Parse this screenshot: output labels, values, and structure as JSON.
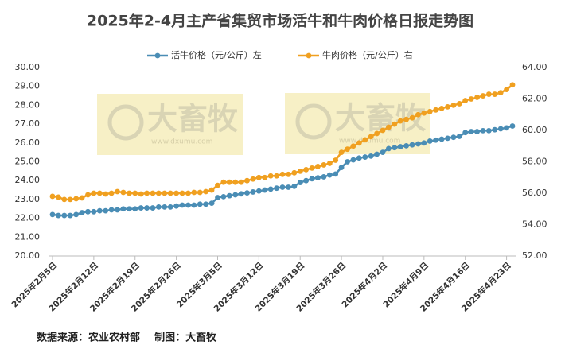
{
  "chart_data": {
    "type": "line",
    "title": "2025年2-4月主产省集贸市场活牛和牛肉价格日报走势图",
    "source": "数据来源：农业农村部    制图：大畜牧",
    "watermark": {
      "brand": "大畜牧",
      "url": "www.dxumu.com"
    },
    "categories": [
      "2025年2月5日",
      null,
      null,
      null,
      null,
      null,
      null,
      "2025年2月12日",
      null,
      null,
      null,
      null,
      null,
      null,
      "2025年2月19日",
      null,
      null,
      null,
      null,
      null,
      null,
      "2025年2月26日",
      null,
      null,
      null,
      null,
      null,
      null,
      "2025年3月5日",
      null,
      null,
      null,
      null,
      null,
      null,
      "2025年3月12日",
      null,
      null,
      null,
      null,
      null,
      null,
      "2025年3月19日",
      null,
      null,
      null,
      null,
      null,
      null,
      "2025年3月26日",
      null,
      null,
      null,
      null,
      null,
      null,
      "2025年4月2日",
      null,
      null,
      null,
      null,
      null,
      null,
      "2025年4月9日",
      null,
      null,
      null,
      null,
      null,
      null,
      "2025年4月16日",
      null,
      null,
      null,
      null,
      null,
      null,
      "2025年4月23日",
      null
    ],
    "series": [
      {
        "name": "活牛价格（元/公斤）左",
        "color": "#4a8db5",
        "axis": "y",
        "values": [
          22.2,
          22.15,
          22.15,
          22.15,
          22.2,
          22.3,
          22.35,
          22.35,
          22.4,
          22.4,
          22.45,
          22.45,
          22.5,
          22.5,
          22.5,
          22.55,
          22.55,
          22.55,
          22.6,
          22.6,
          22.6,
          22.65,
          22.7,
          22.7,
          22.7,
          22.75,
          22.75,
          22.8,
          23.1,
          23.15,
          23.2,
          23.25,
          23.3,
          23.35,
          23.4,
          23.45,
          23.5,
          23.55,
          23.6,
          23.65,
          23.65,
          23.7,
          23.9,
          24.0,
          24.1,
          24.15,
          24.2,
          24.3,
          24.35,
          24.7,
          25.0,
          25.1,
          25.2,
          25.25,
          25.3,
          25.4,
          25.5,
          25.7,
          25.75,
          25.8,
          25.85,
          25.9,
          25.95,
          26.0,
          26.1,
          26.15,
          26.2,
          26.25,
          26.3,
          26.35,
          26.55,
          26.6,
          26.6,
          26.65,
          26.65,
          26.7,
          26.75,
          26.8,
          26.9
        ]
      },
      {
        "name": "牛肉价格（元/公斤）右",
        "color": "#f0a020",
        "axis": "y2",
        "values": [
          55.8,
          55.75,
          55.6,
          55.6,
          55.65,
          55.7,
          55.9,
          56.0,
          56.0,
          55.95,
          56.0,
          56.1,
          56.05,
          56.0,
          56.0,
          55.95,
          56.0,
          56.0,
          56.0,
          56.0,
          56.0,
          56.0,
          56.0,
          56.0,
          56.05,
          56.05,
          56.1,
          56.2,
          56.5,
          56.7,
          56.7,
          56.7,
          56.7,
          56.8,
          56.9,
          57.0,
          57.0,
          57.1,
          57.1,
          57.2,
          57.2,
          57.3,
          57.4,
          57.5,
          57.6,
          57.7,
          57.8,
          57.9,
          58.1,
          58.6,
          58.8,
          59.0,
          59.2,
          59.4,
          59.6,
          59.8,
          60.0,
          60.2,
          60.4,
          60.6,
          60.7,
          60.8,
          61.0,
          61.1,
          61.2,
          61.3,
          61.4,
          61.5,
          61.6,
          61.7,
          61.9,
          62.0,
          62.1,
          62.2,
          62.3,
          62.3,
          62.4,
          62.6,
          62.9
        ]
      }
    ],
    "ylim": [
      20,
      30
    ],
    "yticks": [
      {
        "value": 20,
        "label": "20.00"
      },
      {
        "value": 21,
        "label": "21.00"
      },
      {
        "value": 22,
        "label": "22.00"
      },
      {
        "value": 23,
        "label": "23.00"
      },
      {
        "value": 24,
        "label": "24.00"
      },
      {
        "value": 25,
        "label": "25.00"
      },
      {
        "value": 26,
        "label": "26.00"
      },
      {
        "value": 27,
        "label": "27.00"
      },
      {
        "value": 28,
        "label": "28.00"
      },
      {
        "value": 29,
        "label": "29.00"
      },
      {
        "value": 30,
        "label": "30.00"
      }
    ],
    "y2lim": [
      52,
      64
    ],
    "y2ticks": [
      {
        "value": 52,
        "label": "52.00"
      },
      {
        "value": 54,
        "label": "54.00"
      },
      {
        "value": 56,
        "label": "56.00"
      },
      {
        "value": 58,
        "label": "58.00"
      },
      {
        "value": 60,
        "label": "60.00"
      },
      {
        "value": 62,
        "label": "62.00"
      },
      {
        "value": 64,
        "label": "64.00"
      }
    ],
    "legend": "top",
    "grid": false
  }
}
